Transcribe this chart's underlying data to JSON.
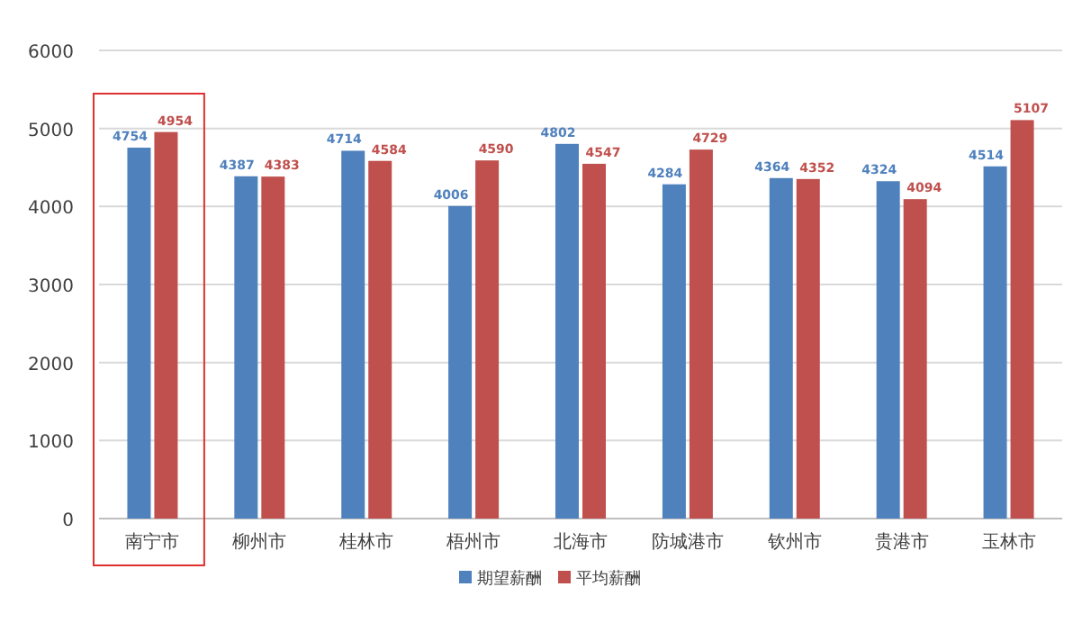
{
  "chart_data": {
    "type": "bar",
    "categories": [
      "南宁市",
      "柳州市",
      "桂林市",
      "梧州市",
      "北海市",
      "防城港市",
      "钦州市",
      "贵港市",
      "玉林市"
    ],
    "series": [
      {
        "name": "期望薪酬",
        "color": "#4f81bd",
        "values": [
          4754,
          4387,
          4714,
          4006,
          4802,
          4284,
          4364,
          4324,
          4514
        ]
      },
      {
        "name": "平均薪酬",
        "color": "#c0504d",
        "values": [
          4954,
          4383,
          4584,
          4590,
          4547,
          4729,
          4352,
          4094,
          5107
        ]
      }
    ],
    "ylim": [
      0,
      6000
    ],
    "yticks": [
      0,
      1000,
      2000,
      3000,
      4000,
      5000,
      6000
    ],
    "grid": "y",
    "legend": "bottom",
    "data_labels": true
  }
}
